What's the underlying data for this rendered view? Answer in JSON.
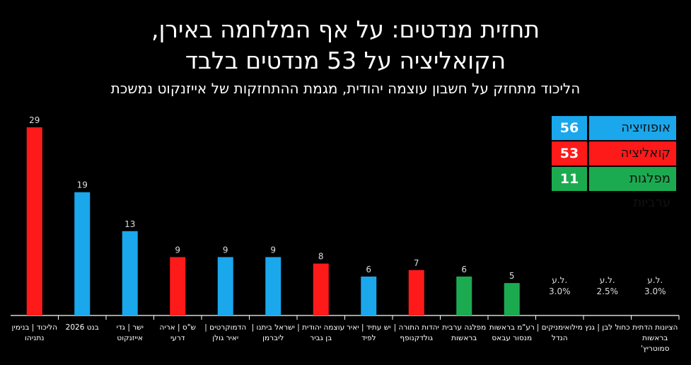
{
  "title_line1": "תחזית מנדטים: על אף המלחמה באירן,",
  "title_line2": "הקואליציה על 53 מנדטים בלבד",
  "subtitle": "הליכוד מתחזק על חשבון עוצמה יהודית, מגמת ההתחזקות של אייזנקוט נמשכת",
  "legend": [
    {
      "label": "אופוזיציה",
      "value": "56",
      "color": "#1aa7ec"
    },
    {
      "label": "קואליציה",
      "value": "53",
      "color": "#ff1a1a"
    },
    {
      "label": "מפלגות ערביות",
      "value": "11",
      "color": "#1caa51"
    }
  ],
  "chart_data": {
    "type": "bar",
    "ylim": [
      0,
      29
    ],
    "grid": false,
    "legend_position": "top-right",
    "categories": [
      [
        "הליכוד | בנימין",
        "נתניהו"
      ],
      [
        "בנט 2026"
      ],
      [
        "ישר | גדי",
        "אייזנקוט"
      ],
      [
        "ש\"ס | אריה",
        "דרעי"
      ],
      [
        "הדמוקרטים |",
        "יאיר גולן"
      ],
      [
        "ישראל ביתנו |",
        "ליברמן"
      ],
      [
        "עוצמה יהודית |",
        "בן גביר"
      ],
      [
        "יש עתיד | יאיר",
        "לפיד"
      ],
      [
        "יהדות התורה |",
        "גולדקנופף"
      ],
      [
        "מפלגה ערבית",
        "בראשות"
      ],
      [
        "רע\"מ בראשות",
        "מנסור עבאס"
      ],
      [
        "מילואימניקים |",
        "הנדל"
      ],
      [
        "כחול לבן | גנץ"
      ],
      [
        "הציונות הדתית",
        "בראשות",
        "סמוטריץ'"
      ]
    ],
    "values": [
      29,
      19,
      13,
      9,
      9,
      9,
      8,
      6,
      7,
      6,
      5,
      null,
      null,
      null
    ],
    "value_labels": [
      "29",
      "19",
      "13",
      "9",
      "9",
      "9",
      "8",
      "6",
      "7",
      "6",
      "5",
      "",
      "",
      ""
    ],
    "below_threshold_labels": [
      "",
      "",
      "",
      "",
      "",
      "",
      "",
      "",
      "",
      "",
      "",
      "ל.ע.\n3.0%",
      "ל.ע.\n2.5%",
      "ל.ע.\n3.0%"
    ],
    "colors": [
      "#ff1a1a",
      "#1aa7ec",
      "#1aa7ec",
      "#ff1a1a",
      "#1aa7ec",
      "#1aa7ec",
      "#ff1a1a",
      "#1aa7ec",
      "#ff1a1a",
      "#1caa51",
      "#1caa51",
      "#1aa7ec",
      "#1aa7ec",
      "#ff1a1a"
    ]
  }
}
